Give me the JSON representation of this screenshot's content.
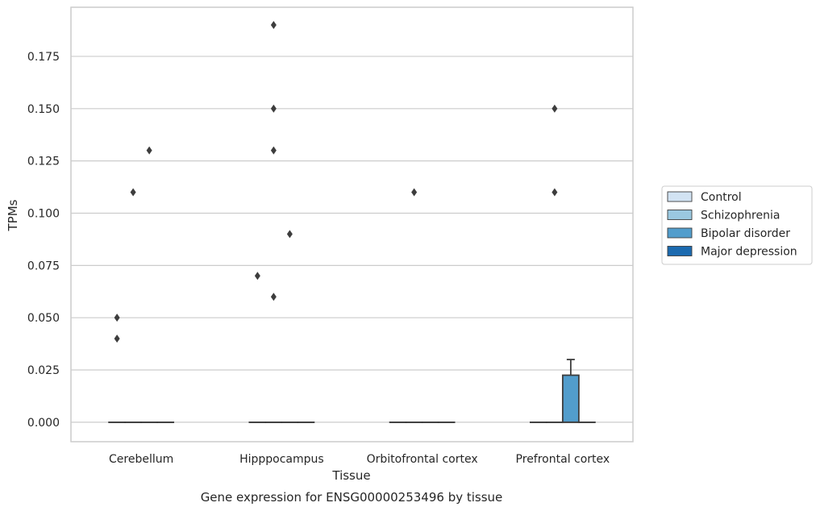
{
  "chart_data": {
    "type": "box",
    "title": "",
    "caption": "Gene expression for ENSG00000253496 by tissue",
    "xlabel": "Tissue",
    "ylabel": "TPMs",
    "ylim": [
      -0.0093,
      0.1985
    ],
    "yticks": [
      "0.000",
      "0.025",
      "0.050",
      "0.075",
      "0.100",
      "0.125",
      "0.150",
      "0.175"
    ],
    "categories": [
      "Cerebellum",
      "Hipppocampus",
      "Orbitofrontal cortex",
      "Prefrontal cortex"
    ],
    "grid": "horizontal",
    "legend_position": "right",
    "series": [
      {
        "name": "Control",
        "color": "#d2e3f3",
        "boxes": [
          {
            "q1": 0,
            "median": 0,
            "q3": 0,
            "whisker_low": 0,
            "whisker_high": 0,
            "outliers": [
              0.04,
              0.05
            ]
          },
          {
            "q1": 0,
            "median": 0,
            "q3": 0,
            "whisker_low": 0,
            "whisker_high": 0,
            "outliers": [
              0.07
            ]
          },
          {
            "q1": 0,
            "median": 0,
            "q3": 0,
            "whisker_low": 0,
            "whisker_high": 0,
            "outliers": []
          },
          {
            "q1": 0,
            "median": 0,
            "q3": 0,
            "whisker_low": 0,
            "whisker_high": 0,
            "outliers": []
          }
        ]
      },
      {
        "name": "Schizophrenia",
        "color": "#9ac8e0",
        "boxes": [
          {
            "q1": 0,
            "median": 0,
            "q3": 0,
            "whisker_low": 0,
            "whisker_high": 0,
            "outliers": [
              0.11
            ]
          },
          {
            "q1": 0,
            "median": 0,
            "q3": 0,
            "whisker_low": 0,
            "whisker_high": 0,
            "outliers": [
              0.13,
              0.15,
              0.19,
              0.06
            ]
          },
          {
            "q1": 0,
            "median": 0,
            "q3": 0,
            "whisker_low": 0,
            "whisker_high": 0,
            "outliers": [
              0.11
            ]
          },
          {
            "q1": 0,
            "median": 0,
            "q3": 0,
            "whisker_low": 0,
            "whisker_high": 0,
            "outliers": [
              0.11,
              0.15
            ]
          }
        ]
      },
      {
        "name": "Bipolar disorder",
        "color": "#529dcc",
        "boxes": [
          {
            "q1": 0,
            "median": 0,
            "q3": 0,
            "whisker_low": 0,
            "whisker_high": 0,
            "outliers": [
              0.13
            ]
          },
          {
            "q1": 0,
            "median": 0,
            "q3": 0,
            "whisker_low": 0,
            "whisker_high": 0,
            "outliers": [
              0.09
            ]
          },
          {
            "q1": 0,
            "median": 0,
            "q3": 0,
            "whisker_low": 0,
            "whisker_high": 0,
            "outliers": []
          },
          {
            "q1": 0,
            "median": 0,
            "q3": 0.0225,
            "whisker_low": 0,
            "whisker_high": 0.03,
            "outliers": []
          }
        ]
      },
      {
        "name": "Major depression",
        "color": "#1c6aaf",
        "boxes": [
          {
            "q1": 0,
            "median": 0,
            "q3": 0,
            "whisker_low": 0,
            "whisker_high": 0,
            "outliers": []
          },
          {
            "q1": 0,
            "median": 0,
            "q3": 0,
            "whisker_low": 0,
            "whisker_high": 0,
            "outliers": []
          },
          {
            "q1": 0,
            "median": 0,
            "q3": 0,
            "whisker_low": 0,
            "whisker_high": 0,
            "outliers": []
          },
          {
            "q1": 0,
            "median": 0,
            "q3": 0,
            "whisker_low": 0,
            "whisker_high": 0,
            "outliers": []
          }
        ]
      }
    ]
  }
}
